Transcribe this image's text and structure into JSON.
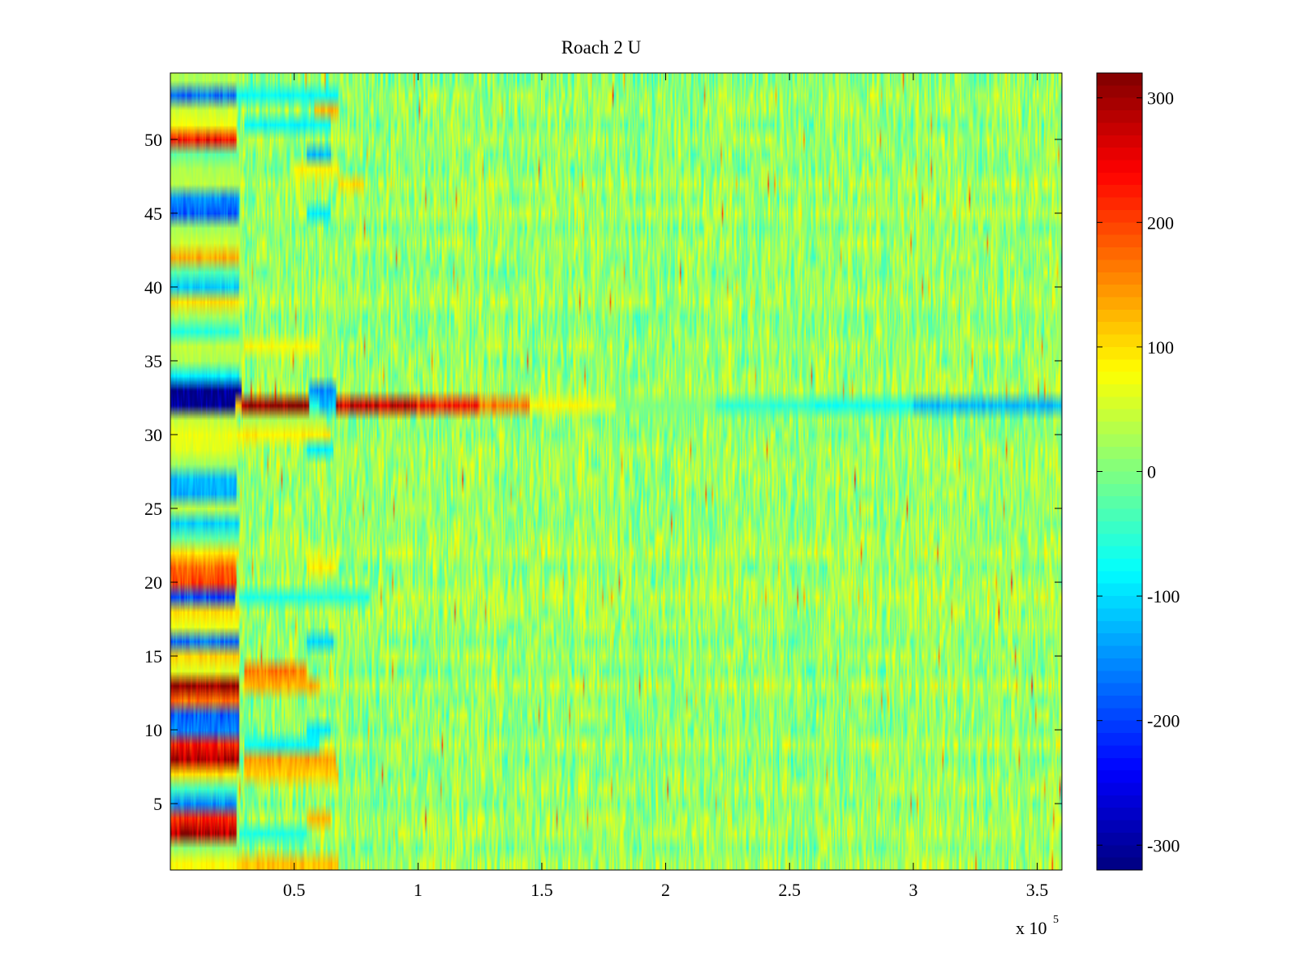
{
  "chart_data": {
    "type": "heatmap",
    "title": "Roach 2 U",
    "xlabel": "",
    "ylabel": "",
    "x_exponent_label": {
      "prefix": "x 10",
      "exponent": "5"
    },
    "xlim": [
      0,
      3.6
    ],
    "ylim": [
      0.5,
      54.5
    ],
    "rows": 54,
    "x_ticks": [
      0.5,
      1,
      1.5,
      2,
      2.5,
      3,
      3.5
    ],
    "x_tick_labels": [
      "0.5",
      "1",
      "1.5",
      "2",
      "2.5",
      "3",
      "3.5"
    ],
    "y_ticks": [
      5,
      10,
      15,
      20,
      25,
      30,
      35,
      40,
      45,
      50
    ],
    "y_tick_labels": [
      "5",
      "10",
      "15",
      "20",
      "25",
      "30",
      "35",
      "40",
      "45",
      "50"
    ],
    "colorbar": {
      "colormap": "jet",
      "clim": [
        -320,
        320
      ],
      "ticks": [
        300,
        200,
        100,
        0,
        -100,
        -200,
        -300
      ],
      "tick_labels": [
        "300",
        "200",
        "100",
        "0",
        "-100",
        "-200",
        "-300"
      ]
    },
    "noise_level": 55,
    "row_segments": [
      {
        "row": 1,
        "start": 0,
        "end": 0.27,
        "value": 80
      },
      {
        "row": 1,
        "start": 0.27,
        "end": 0.68,
        "value": 120
      },
      {
        "row": 2,
        "start": 0,
        "end": 0.27,
        "value": 10
      },
      {
        "row": 3,
        "start": 0,
        "end": 0.27,
        "value": 290
      },
      {
        "row": 3,
        "start": 0.28,
        "end": 0.55,
        "value": -60
      },
      {
        "row": 4,
        "start": 0,
        "end": 0.27,
        "value": 220
      },
      {
        "row": 4,
        "start": 0.55,
        "end": 0.65,
        "value": 120
      },
      {
        "row": 5,
        "start": 0,
        "end": 0.27,
        "value": -150
      },
      {
        "row": 6,
        "start": 0,
        "end": 0.27,
        "value": -40
      },
      {
        "row": 7,
        "start": 0,
        "end": 0.27,
        "value": 100
      },
      {
        "row": 7,
        "start": 0.3,
        "end": 0.68,
        "value": 110
      },
      {
        "row": 8,
        "start": 0,
        "end": 0.28,
        "value": 300
      },
      {
        "row": 8,
        "start": 0.3,
        "end": 0.67,
        "value": 140
      },
      {
        "row": 9,
        "start": 0,
        "end": 0.28,
        "value": 230
      },
      {
        "row": 9,
        "start": 0.3,
        "end": 0.6,
        "value": -80
      },
      {
        "row": 10,
        "start": 0,
        "end": 0.28,
        "value": -160
      },
      {
        "row": 10,
        "start": 0.55,
        "end": 0.65,
        "value": -90
      },
      {
        "row": 11,
        "start": 0,
        "end": 0.28,
        "value": -180
      },
      {
        "row": 12,
        "start": 0,
        "end": 0.28,
        "value": 170
      },
      {
        "row": 13,
        "start": 0,
        "end": 0.28,
        "value": 320
      },
      {
        "row": 13,
        "start": 0.3,
        "end": 0.6,
        "value": 130
      },
      {
        "row": 14,
        "start": 0,
        "end": 0.28,
        "value": 60
      },
      {
        "row": 14,
        "start": 0.3,
        "end": 0.55,
        "value": 160
      },
      {
        "row": 15,
        "start": 0,
        "end": 0.28,
        "value": 110
      },
      {
        "row": 16,
        "start": 0,
        "end": 0.28,
        "value": -170
      },
      {
        "row": 16,
        "start": 0.55,
        "end": 0.66,
        "value": -100
      },
      {
        "row": 17,
        "start": 0,
        "end": 0.28,
        "value": 70
      },
      {
        "row": 18,
        "start": 0,
        "end": 0.28,
        "value": 100
      },
      {
        "row": 19,
        "start": 0,
        "end": 0.26,
        "value": -190
      },
      {
        "row": 19,
        "start": 0.28,
        "end": 0.8,
        "value": -60
      },
      {
        "row": 20,
        "start": 0,
        "end": 0.27,
        "value": 200
      },
      {
        "row": 21,
        "start": 0,
        "end": 0.27,
        "value": 170
      },
      {
        "row": 21,
        "start": 0.55,
        "end": 0.67,
        "value": 90
      },
      {
        "row": 22,
        "start": 0,
        "end": 0.28,
        "value": 100
      },
      {
        "row": 23,
        "start": 0,
        "end": 0.28,
        "value": -20
      },
      {
        "row": 24,
        "start": 0,
        "end": 0.28,
        "value": -110
      },
      {
        "row": 25,
        "start": 0,
        "end": 0.28,
        "value": 40
      },
      {
        "row": 26,
        "start": 0,
        "end": 0.27,
        "value": -130
      },
      {
        "row": 27,
        "start": 0,
        "end": 0.27,
        "value": -120
      },
      {
        "row": 28,
        "start": 0,
        "end": 0.27,
        "value": 20
      },
      {
        "row": 29,
        "start": 0,
        "end": 0.27,
        "value": 60
      },
      {
        "row": 29,
        "start": 0.55,
        "end": 0.66,
        "value": -90
      },
      {
        "row": 30,
        "start": 0,
        "end": 0.27,
        "value": 70
      },
      {
        "row": 30,
        "start": 0.27,
        "end": 0.65,
        "value": 90
      },
      {
        "row": 31,
        "start": 0,
        "end": 0.27,
        "value": 40
      },
      {
        "row": 31,
        "start": 0.3,
        "end": 0.6,
        "value": 30
      },
      {
        "row": 32,
        "start": 0,
        "end": 0.26,
        "value": -320
      },
      {
        "row": 32,
        "start": 0.26,
        "end": 0.29,
        "value": 120
      },
      {
        "row": 32,
        "start": 0.29,
        "end": 0.56,
        "value": 320
      },
      {
        "row": 32,
        "start": 0.56,
        "end": 0.6,
        "value": -60
      },
      {
        "row": 32,
        "start": 0.6,
        "end": 0.67,
        "value": -120
      },
      {
        "row": 32,
        "start": 0.67,
        "end": 1.0,
        "value": 270
      },
      {
        "row": 32,
        "start": 1.0,
        "end": 1.25,
        "value": 230
      },
      {
        "row": 32,
        "start": 1.25,
        "end": 1.45,
        "value": 160
      },
      {
        "row": 32,
        "start": 1.45,
        "end": 1.7,
        "value": 80
      },
      {
        "row": 32,
        "start": 1.7,
        "end": 1.8,
        "value": 60
      },
      {
        "row": 32,
        "start": 1.8,
        "end": 2.2,
        "value": 0
      },
      {
        "row": 32,
        "start": 2.2,
        "end": 2.6,
        "value": -50
      },
      {
        "row": 32,
        "start": 2.6,
        "end": 3.0,
        "value": -70
      },
      {
        "row": 32,
        "start": 3.0,
        "end": 3.6,
        "value": -120
      },
      {
        "row": 33,
        "start": 0,
        "end": 0.29,
        "value": -320
      },
      {
        "row": 33,
        "start": 0.56,
        "end": 0.67,
        "value": -150
      },
      {
        "row": 34,
        "start": 0,
        "end": 0.28,
        "value": -90
      },
      {
        "row": 35,
        "start": 0,
        "end": 0.28,
        "value": 30
      },
      {
        "row": 36,
        "start": 0,
        "end": 0.28,
        "value": 40
      },
      {
        "row": 36,
        "start": 0.3,
        "end": 0.6,
        "value": 80
      },
      {
        "row": 37,
        "start": 0,
        "end": 0.28,
        "value": -60
      },
      {
        "row": 38,
        "start": 0,
        "end": 0.28,
        "value": 20
      },
      {
        "row": 39,
        "start": 0,
        "end": 0.28,
        "value": 100
      },
      {
        "row": 40,
        "start": 0,
        "end": 0.28,
        "value": -110
      },
      {
        "row": 41,
        "start": 0,
        "end": 0.28,
        "value": -30
      },
      {
        "row": 42,
        "start": 0,
        "end": 0.28,
        "value": 130
      },
      {
        "row": 43,
        "start": 0,
        "end": 0.28,
        "value": 50
      },
      {
        "row": 44,
        "start": 0,
        "end": 0.28,
        "value": 20
      },
      {
        "row": 45,
        "start": 0,
        "end": 0.28,
        "value": -180
      },
      {
        "row": 45,
        "start": 0.55,
        "end": 0.65,
        "value": -90
      },
      {
        "row": 46,
        "start": 0,
        "end": 0.28,
        "value": -150
      },
      {
        "row": 47,
        "start": 0,
        "end": 0.28,
        "value": 40
      },
      {
        "row": 47,
        "start": 0.68,
        "end": 0.78,
        "value": 100
      },
      {
        "row": 48,
        "start": 0,
        "end": 0.28,
        "value": 30
      },
      {
        "row": 48,
        "start": 0.5,
        "end": 0.68,
        "value": 90
      },
      {
        "row": 49,
        "start": 0,
        "end": 0.28,
        "value": -20
      },
      {
        "row": 49,
        "start": 0.55,
        "end": 0.65,
        "value": -120
      },
      {
        "row": 50,
        "start": 0,
        "end": 0.27,
        "value": 240
      },
      {
        "row": 51,
        "start": 0,
        "end": 0.27,
        "value": 70
      },
      {
        "row": 51,
        "start": 0.3,
        "end": 0.65,
        "value": -80
      },
      {
        "row": 52,
        "start": 0,
        "end": 0.27,
        "value": 50
      },
      {
        "row": 52,
        "start": 0.58,
        "end": 0.68,
        "value": 120
      },
      {
        "row": 53,
        "start": 0,
        "end": 0.27,
        "value": -170
      },
      {
        "row": 53,
        "start": 0.27,
        "end": 0.68,
        "value": -80
      },
      {
        "row": 54,
        "start": 0,
        "end": 0.27,
        "value": 30
      }
    ]
  }
}
